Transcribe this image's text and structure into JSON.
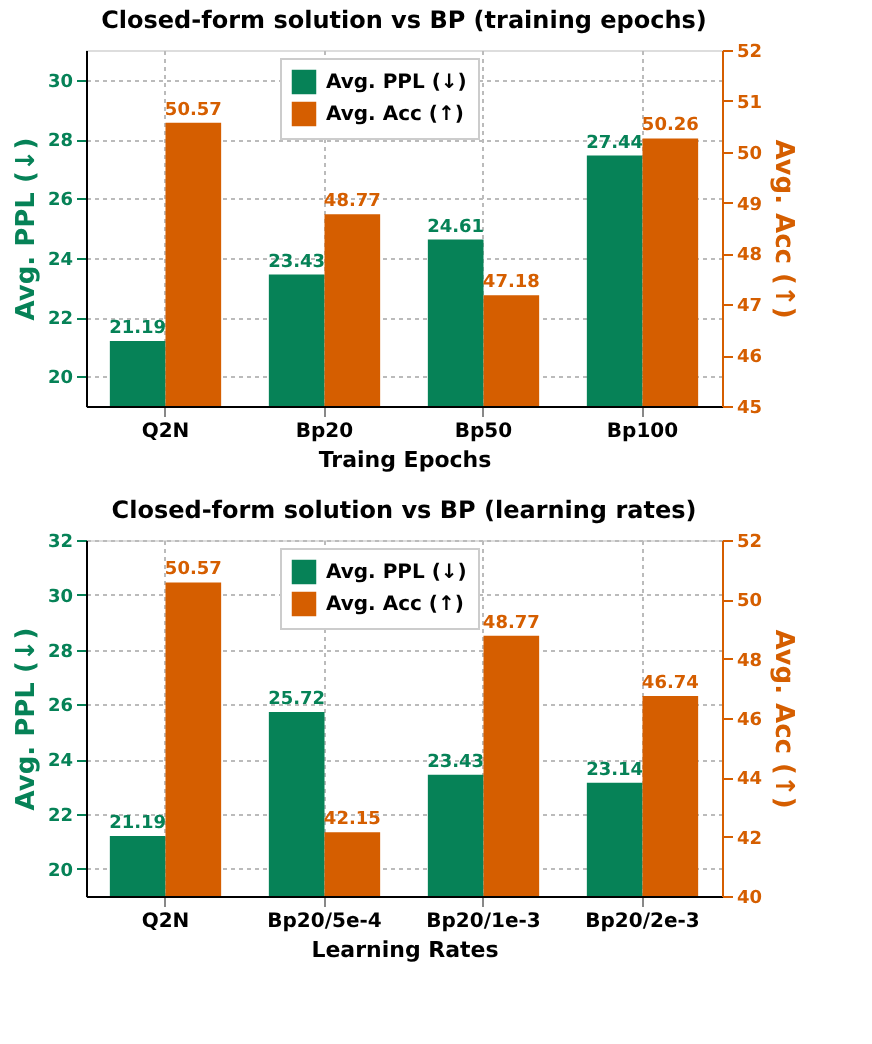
{
  "chart_data": [
    {
      "type": "bar",
      "title": "Closed-form solution vs BP (training epochs)",
      "xlabel": "Traing Epochs",
      "ylabel": "Avg. PPL (↓)",
      "y2label": "Avg. Acc (↑)",
      "categories": [
        "Q2N",
        "Bp20",
        "Bp50",
        "Bp100"
      ],
      "series": [
        {
          "name": "Avg. PPL (↓)",
          "color": "#068257",
          "values": [
            21.19,
            23.43,
            24.61,
            27.44
          ]
        },
        {
          "name": "Avg. Acc (↑)",
          "color": "#d55e00",
          "values": [
            50.57,
            48.77,
            47.18,
            50.26
          ],
          "axis": "y2"
        }
      ],
      "ylim": [
        19,
        31
      ],
      "yticks": [
        20,
        22,
        24,
        26,
        28,
        30
      ],
      "y2lim": [
        45,
        52
      ],
      "y2ticks": [
        45,
        46,
        47,
        48,
        49,
        50,
        51,
        52
      ],
      "data_labels": true,
      "grid": true,
      "legend": "top"
    },
    {
      "type": "bar",
      "title": "Closed-form solution vs BP (learning rates)",
      "xlabel": "Learning Rates",
      "ylabel": "Avg. PPL (↓)",
      "y2label": "Avg. Acc (↑)",
      "categories": [
        "Q2N",
        "Bp20/5e-4",
        "Bp20/1e-3",
        "Bp20/2e-3"
      ],
      "series": [
        {
          "name": "Avg. PPL (↓)",
          "color": "#068257",
          "values": [
            21.19,
            25.72,
            23.43,
            23.14
          ]
        },
        {
          "name": "Avg. Acc (↑)",
          "color": "#d55e00",
          "values": [
            50.57,
            42.15,
            48.77,
            46.74
          ],
          "axis": "y2"
        }
      ],
      "ylim": [
        19,
        32
      ],
      "yticks": [
        20,
        22,
        24,
        26,
        28,
        30,
        32
      ],
      "y2lim": [
        40,
        52
      ],
      "y2ticks": [
        40,
        42,
        44,
        46,
        48,
        50,
        52
      ],
      "data_labels": true,
      "grid": true,
      "legend": "top"
    }
  ]
}
